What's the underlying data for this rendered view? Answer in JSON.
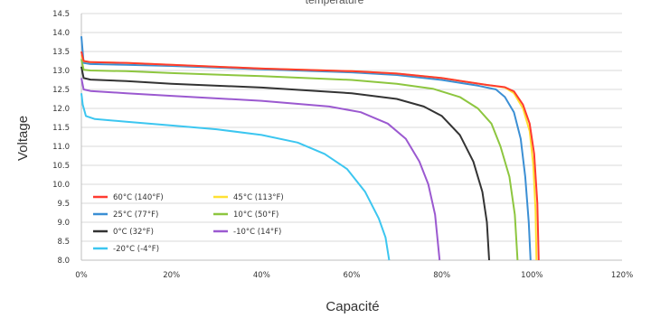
{
  "chart_data": {
    "type": "line",
    "title": "temperature",
    "xlabel": "Capacité",
    "ylabel": "Voltage",
    "xlim": [
      0,
      120
    ],
    "ylim": [
      8.0,
      14.5
    ],
    "x_ticks": [
      0,
      20,
      40,
      60,
      80,
      100,
      120
    ],
    "x_tick_labels": [
      "0%",
      "20%",
      "40%",
      "60%",
      "80%",
      "100%",
      "120%"
    ],
    "y_ticks": [
      8.0,
      8.5,
      9.0,
      9.5,
      10.0,
      10.5,
      11.0,
      11.5,
      12.0,
      12.5,
      13.0,
      13.5,
      14.0,
      14.5
    ],
    "y_tick_labels": [
      "8.0",
      "8.5",
      "9.0",
      "9.5",
      "10.0",
      "10.5",
      "11.0",
      "11.5",
      "12.0",
      "12.5",
      "13.0",
      "13.5",
      "14.0",
      "14.5"
    ],
    "grid": "horizontal",
    "legend_position": "bottom-left",
    "series": [
      {
        "name": "60°C  (140°F)",
        "color": "#ff3b30",
        "points": [
          [
            0,
            13.5
          ],
          [
            0.5,
            13.25
          ],
          [
            2,
            13.22
          ],
          [
            10,
            13.2
          ],
          [
            20,
            13.15
          ],
          [
            40,
            13.05
          ],
          [
            60,
            12.98
          ],
          [
            70,
            12.92
          ],
          [
            80,
            12.8
          ],
          [
            90,
            12.62
          ],
          [
            94,
            12.56
          ],
          [
            96,
            12.45
          ],
          [
            98,
            12.1
          ],
          [
            99.5,
            11.6
          ],
          [
            100.5,
            10.8
          ],
          [
            101.2,
            9.5
          ],
          [
            101.5,
            8.0
          ]
        ]
      },
      {
        "name": "45°C  (113°F)",
        "color": "#ffe033",
        "points": [
          [
            0,
            13.4
          ],
          [
            0.5,
            13.24
          ],
          [
            2,
            13.22
          ],
          [
            10,
            13.2
          ],
          [
            20,
            13.15
          ],
          [
            40,
            13.05
          ],
          [
            60,
            12.98
          ],
          [
            70,
            12.92
          ],
          [
            80,
            12.8
          ],
          [
            90,
            12.62
          ],
          [
            94,
            12.55
          ],
          [
            96,
            12.4
          ],
          [
            98,
            12.0
          ],
          [
            99.5,
            11.4
          ],
          [
            100.3,
            10.5
          ],
          [
            100.8,
            9.3
          ],
          [
            101.0,
            8.0
          ]
        ]
      },
      {
        "name": "25°C  (77°F)",
        "color": "#3b8fd4",
        "points": [
          [
            0,
            13.9
          ],
          [
            0.5,
            13.2
          ],
          [
            2,
            13.17
          ],
          [
            10,
            13.15
          ],
          [
            20,
            13.12
          ],
          [
            40,
            13.03
          ],
          [
            60,
            12.95
          ],
          [
            70,
            12.88
          ],
          [
            80,
            12.75
          ],
          [
            88,
            12.6
          ],
          [
            92,
            12.5
          ],
          [
            94,
            12.3
          ],
          [
            96,
            11.9
          ],
          [
            97.5,
            11.2
          ],
          [
            98.5,
            10.2
          ],
          [
            99.3,
            9.0
          ],
          [
            99.7,
            8.0
          ]
        ]
      },
      {
        "name": "10°C  (50°F)",
        "color": "#8dc63f",
        "points": [
          [
            0,
            13.3
          ],
          [
            0.5,
            13.02
          ],
          [
            2,
            13.0
          ],
          [
            10,
            12.98
          ],
          [
            20,
            12.93
          ],
          [
            40,
            12.85
          ],
          [
            60,
            12.75
          ],
          [
            70,
            12.65
          ],
          [
            78,
            12.52
          ],
          [
            84,
            12.3
          ],
          [
            88,
            12.0
          ],
          [
            91,
            11.6
          ],
          [
            93,
            11.0
          ],
          [
            95,
            10.2
          ],
          [
            96.2,
            9.2
          ],
          [
            96.8,
            8.0
          ]
        ]
      },
      {
        "name": "0°C  (32°F)",
        "color": "#333333",
        "points": [
          [
            0,
            13.1
          ],
          [
            0.5,
            12.8
          ],
          [
            2,
            12.76
          ],
          [
            10,
            12.72
          ],
          [
            20,
            12.65
          ],
          [
            40,
            12.55
          ],
          [
            60,
            12.4
          ],
          [
            70,
            12.25
          ],
          [
            76,
            12.05
          ],
          [
            80,
            11.8
          ],
          [
            84,
            11.3
          ],
          [
            87,
            10.6
          ],
          [
            89,
            9.8
          ],
          [
            90,
            9.0
          ],
          [
            90.5,
            8.0
          ]
        ]
      },
      {
        "name": "-10°C  (14°F)",
        "color": "#9b59d0",
        "points": [
          [
            0,
            12.8
          ],
          [
            0.5,
            12.5
          ],
          [
            2,
            12.46
          ],
          [
            10,
            12.4
          ],
          [
            20,
            12.33
          ],
          [
            40,
            12.2
          ],
          [
            55,
            12.05
          ],
          [
            62,
            11.9
          ],
          [
            68,
            11.6
          ],
          [
            72,
            11.2
          ],
          [
            75,
            10.6
          ],
          [
            77,
            10.0
          ],
          [
            78.5,
            9.2
          ],
          [
            79.5,
            8.0
          ]
        ]
      },
      {
        "name": "-20°C  (-4°F)",
        "color": "#3cc6f0",
        "points": [
          [
            0,
            12.4
          ],
          [
            0.3,
            12.1
          ],
          [
            1,
            11.8
          ],
          [
            3,
            11.72
          ],
          [
            10,
            11.65
          ],
          [
            20,
            11.55
          ],
          [
            30,
            11.45
          ],
          [
            40,
            11.3
          ],
          [
            48,
            11.1
          ],
          [
            54,
            10.8
          ],
          [
            59,
            10.4
          ],
          [
            63,
            9.8
          ],
          [
            66,
            9.1
          ],
          [
            67.5,
            8.6
          ],
          [
            68.3,
            8.0
          ]
        ]
      }
    ]
  }
}
